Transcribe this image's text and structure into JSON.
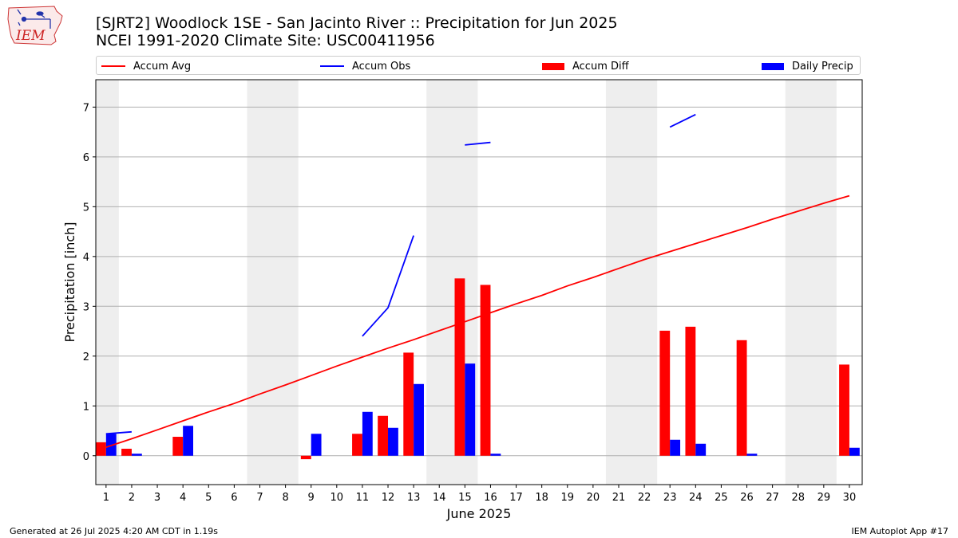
{
  "logo": {
    "text": "IEM"
  },
  "title_line1": "[SJRT2] Woodlock 1SE - San Jacinto River :: Precipitation for Jun 2025",
  "title_line2": "NCEI 1991-2020 Climate Site: USC00411956",
  "legend": [
    {
      "label": "Accum Avg",
      "kind": "line",
      "color": "#ff0000"
    },
    {
      "label": "Accum Obs",
      "kind": "line",
      "color": "#0000ff"
    },
    {
      "label": "Accum Diff",
      "kind": "bar",
      "color": "#ff0000"
    },
    {
      "label": "Daily Precip",
      "kind": "bar",
      "color": "#0000ff"
    }
  ],
  "footer_left": "Generated at 26 Jul 2025 4:20 AM CDT in 1.19s",
  "footer_right": "IEM Autoplot App #17",
  "chart_data": {
    "type": "bar",
    "xlabel": "June 2025",
    "ylabel": "Precipitation [inch]",
    "x": [
      1,
      2,
      3,
      4,
      5,
      6,
      7,
      8,
      9,
      10,
      11,
      12,
      13,
      14,
      15,
      16,
      17,
      18,
      19,
      20,
      21,
      22,
      23,
      24,
      25,
      26,
      27,
      28,
      29,
      30
    ],
    "xlim": [
      0.6,
      30.5
    ],
    "ylim": [
      -0.58,
      7.55
    ],
    "yticks": [
      0,
      1,
      2,
      3,
      4,
      5,
      6,
      7
    ],
    "grid": "horizontal",
    "weekend_shading": [
      [
        0.6,
        1.5
      ],
      [
        6.5,
        8.5
      ],
      [
        13.5,
        15.5
      ],
      [
        20.5,
        22.5
      ],
      [
        27.5,
        29.5
      ]
    ],
    "shading_color": "#eeeeee",
    "series": [
      {
        "name": "Accum Avg",
        "type": "line",
        "color": "#ff0000",
        "values": [
          0.17,
          0.34,
          0.52,
          0.7,
          0.88,
          1.05,
          1.24,
          1.42,
          1.61,
          1.8,
          1.98,
          2.16,
          2.33,
          2.51,
          2.69,
          2.87,
          3.05,
          3.22,
          3.41,
          3.58,
          3.76,
          3.94,
          4.1,
          4.26,
          4.42,
          4.58,
          4.75,
          4.91,
          5.07,
          5.22
        ]
      },
      {
        "name": "Accum Obs",
        "type": "line",
        "color": "#0000ff",
        "values": [
          0.44,
          0.48,
          null,
          null,
          null,
          null,
          null,
          null,
          null,
          null,
          2.4,
          2.97,
          4.42,
          null,
          6.24,
          6.29,
          null,
          null,
          null,
          null,
          null,
          null,
          6.6,
          6.85,
          null,
          null,
          null,
          null,
          null,
          null
        ]
      },
      {
        "name": "Accum Diff",
        "type": "bar",
        "color": "#ff0000",
        "values": [
          0.27,
          0.14,
          0,
          0.38,
          0,
          0,
          0,
          0,
          -0.07,
          0,
          0.44,
          0.8,
          2.07,
          0,
          3.56,
          3.43,
          0,
          0,
          0,
          0,
          0,
          0,
          2.51,
          2.59,
          0,
          2.32,
          0,
          0,
          0,
          1.83
        ]
      },
      {
        "name": "Daily Precip",
        "type": "bar",
        "color": "#0000ff",
        "values": [
          0.44,
          0.04,
          0,
          0.6,
          0,
          0,
          0,
          0,
          0.44,
          0,
          0.88,
          0.56,
          1.44,
          0,
          1.85,
          0.04,
          0,
          0,
          0,
          0,
          0,
          0,
          0.32,
          0.24,
          0,
          0.04,
          0,
          0,
          0,
          0.16
        ]
      }
    ]
  }
}
